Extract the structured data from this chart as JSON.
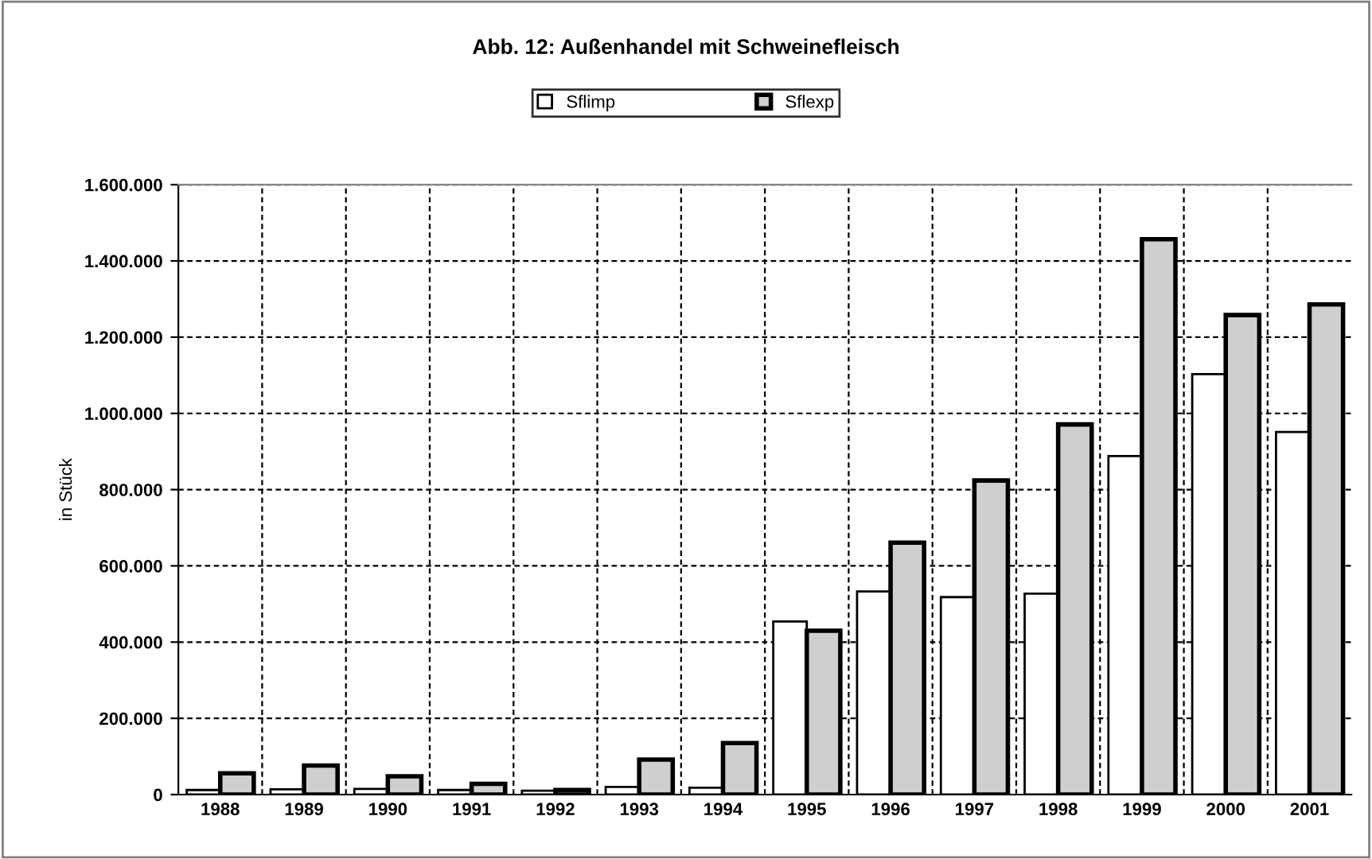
{
  "chart_data": {
    "type": "bar",
    "title": "Abb. 12: Außenhandel mit Schweinefleisch",
    "ylabel": "in Stück",
    "categories": [
      "1988",
      "1989",
      "1990",
      "1991",
      "1992",
      "1993",
      "1994",
      "1995",
      "1996",
      "1997",
      "1998",
      "1999",
      "2000",
      "2001"
    ],
    "series": [
      {
        "name": "Sflimp",
        "color": "#ffffff",
        "values": [
          12000,
          14000,
          15000,
          12000,
          10000,
          20000,
          18000,
          454000,
          533000,
          518000,
          527000,
          888000,
          1103000,
          951000
        ]
      },
      {
        "name": "Sflexp",
        "color": "#cfcfcf",
        "values": [
          56000,
          76000,
          48000,
          28000,
          12000,
          92000,
          135000,
          430000,
          661000,
          824000,
          971000,
          1457000,
          1258000,
          1286000
        ]
      }
    ],
    "ylim": [
      0,
      1600000
    ],
    "yticks": [
      0,
      {
        "value": 200000,
        "label": "200.000"
      },
      {
        "value": 400000,
        "label": "400.000"
      },
      {
        "value": 600000,
        "label": "600.000"
      },
      {
        "value": 800000,
        "label": "800.000"
      },
      {
        "value": 1000000,
        "label": "1.000.000"
      },
      {
        "value": 1200000,
        "label": "1.200.000"
      },
      {
        "value": 1400000,
        "label": "1.400.000"
      },
      {
        "value": 1600000,
        "label": "1.600.000"
      }
    ],
    "grid": true,
    "legend": "top"
  }
}
